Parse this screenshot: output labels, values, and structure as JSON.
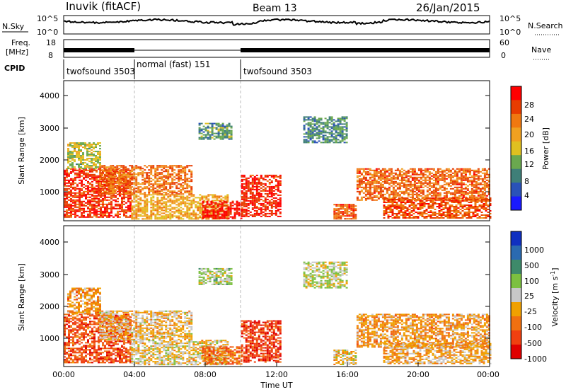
{
  "header": {
    "station": "Inuvik (fitACF)",
    "beam": "Beam 13",
    "date": "26/Jan/2015"
  },
  "noise_panel": {
    "left_label": "N.Sky",
    "right_label": "N.Search",
    "left_ticks": [
      "10^5",
      "10^0"
    ],
    "right_ticks": [
      "10^5",
      "10^0"
    ]
  },
  "freq_panel": {
    "left_label_1": "Freq.",
    "left_label_2": "[MHz]",
    "right_label": "Nave",
    "left_ticks": [
      "18",
      "8"
    ],
    "right_ticks": [
      "60",
      "0"
    ]
  },
  "cpid": {
    "label": "CPID",
    "segments": [
      {
        "name": "twofsound 3503",
        "start_hour": 0,
        "end_hour": 4
      },
      {
        "name": "normal (fast) 151",
        "start_hour": 4,
        "end_hour": 10
      },
      {
        "name": "twofsound 3503",
        "start_hour": 10,
        "end_hour": 24
      }
    ]
  },
  "xaxis": {
    "label": "Time UT",
    "ticks": [
      "00:00",
      "04:00",
      "08:00",
      "12:00",
      "16:00",
      "20:00",
      "00:00"
    ]
  },
  "power_panel": {
    "ylabel": "Slant Range [km]",
    "yticks": [
      "1000",
      "2000",
      "3000",
      "4000"
    ],
    "colorbar_label": "Power [dB]",
    "colorbar_ticks": [
      "4",
      "8",
      "12",
      "16",
      "20",
      "24",
      "28"
    ],
    "colors": [
      "#1a1aff",
      "#2a52b8",
      "#3f7f78",
      "#6aa84f",
      "#e0c020",
      "#f0a020",
      "#f07810",
      "#e83c00",
      "#ff0000"
    ]
  },
  "velocity_panel": {
    "ylabel": "Slant Range [km]",
    "yticks": [
      "1000",
      "2000",
      "3000",
      "4000"
    ],
    "colorbar_label": "Velocity [m s",
    "colorbar_label_sup": "-1",
    "colorbar_label_end": "]",
    "colorbar_ticks": [
      "1000",
      "500",
      "100",
      "25",
      "-25",
      "-100",
      "-500",
      "-1000"
    ],
    "colors": [
      "#1030c0",
      "#2a6ab0",
      "#3e8a6a",
      "#7cc040",
      "#c8c8c8",
      "#f0a000",
      "#f07010",
      "#f04010",
      "#e00000"
    ]
  },
  "chart_data": {
    "type": "heatmap",
    "title": "Inuvik (fitACF) Beam 13 26/Jan/2015",
    "xlabel": "Time UT",
    "ylabel": "Slant Range [km]",
    "xlim_hours": [
      0,
      24
    ],
    "ylim_km": [
      180,
      4500
    ],
    "power_scale_db": [
      0,
      30
    ],
    "velocity_scale_ms": [
      -1000,
      1000
    ],
    "echo_regions": [
      {
        "t_start": 0.0,
        "t_end": 3.8,
        "r_min": 300,
        "r_max": 1800,
        "power_db": 26,
        "velocity_ms": -600
      },
      {
        "t_start": 0.2,
        "t_end": 2.0,
        "r_min": 1800,
        "r_max": 2600,
        "power_db": 14,
        "velocity_ms": -300
      },
      {
        "t_start": 2.0,
        "t_end": 7.2,
        "r_min": 1000,
        "r_max": 1900,
        "power_db": 22,
        "velocity_ms": -150
      },
      {
        "t_start": 3.8,
        "t_end": 9.2,
        "r_min": 250,
        "r_max": 1000,
        "power_db": 18,
        "velocity_ms": -100
      },
      {
        "t_start": 7.6,
        "t_end": 9.4,
        "r_min": 2700,
        "r_max": 3200,
        "power_db": 10,
        "velocity_ms": 100
      },
      {
        "t_start": 7.8,
        "t_end": 10.0,
        "r_min": 250,
        "r_max": 800,
        "power_db": 28,
        "velocity_ms": -500
      },
      {
        "t_start": 10.0,
        "t_end": 12.2,
        "r_min": 300,
        "r_max": 1600,
        "power_db": 27,
        "velocity_ms": -700
      },
      {
        "t_start": 15.2,
        "t_end": 16.5,
        "r_min": 250,
        "r_max": 700,
        "power_db": 24,
        "velocity_ms": -100
      },
      {
        "t_start": 16.5,
        "t_end": 24.0,
        "r_min": 800,
        "r_max": 1800,
        "power_db": 23,
        "velocity_ms": -300
      },
      {
        "t_start": 18.0,
        "t_end": 24.0,
        "r_min": 250,
        "r_max": 900,
        "power_db": 24,
        "velocity_ms": -250
      },
      {
        "t_start": 13.5,
        "t_end": 16.0,
        "r_min": 2600,
        "r_max": 3400,
        "power_db": 9,
        "velocity_ms": 50
      }
    ]
  }
}
